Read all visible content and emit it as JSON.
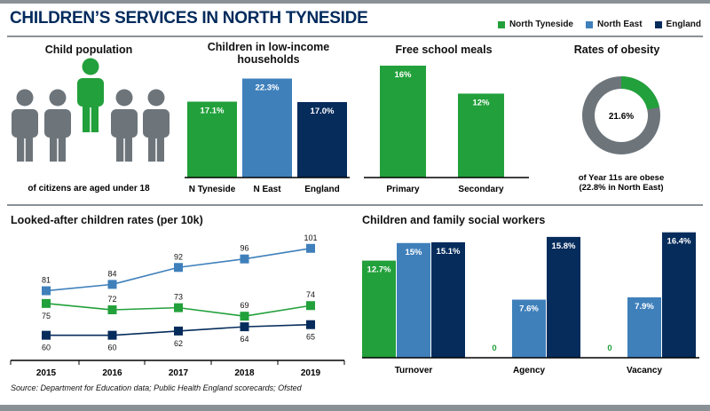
{
  "header": {
    "title": "CHILDREN’S SERVICES IN NORTH TYNESIDE",
    "legend": [
      {
        "name": "North Tyneside",
        "color": "#22a03b"
      },
      {
        "name": "North East",
        "color": "#3f80bb"
      },
      {
        "name": "England",
        "color": "#062c5c"
      }
    ]
  },
  "colors": {
    "nt": "#22a03b",
    "ne": "#3f80bb",
    "en": "#062c5c",
    "grey": "#6d757b"
  },
  "panels": {
    "population": {
      "title": "Child population",
      "caption": "of citizens are aged under 18",
      "highlighted_figures": 1,
      "total_figures": 5
    },
    "low_income": {
      "title": "Children in low-income households"
    },
    "fsm": {
      "title": "Free school meals"
    },
    "obesity": {
      "title": "Rates of obesity",
      "caption": "of Year 11s are obese (22.8% in North East)"
    },
    "lac": {
      "title": "Looked-after children rates (per 10k)"
    },
    "social": {
      "title": "Children and family social workers"
    }
  },
  "chart_data": [
    {
      "id": "low_income",
      "type": "bar",
      "title": "Children in low-income households",
      "categories": [
        "N Tyneside",
        "N East",
        "England"
      ],
      "values": [
        17.1,
        22.3,
        17.0
      ],
      "labels": [
        "17.1%",
        "22.3%",
        "17.0%"
      ],
      "ylim": [
        0,
        23
      ]
    },
    {
      "id": "fsm",
      "type": "bar",
      "title": "Free school meals",
      "categories": [
        "Primary",
        "Secondary"
      ],
      "values": [
        16,
        12
      ],
      "labels": [
        "16%",
        "12%"
      ],
      "ylim": [
        0,
        16.5
      ]
    },
    {
      "id": "obesity",
      "type": "pie",
      "title": "Rates of obesity",
      "values": [
        21.6,
        78.4
      ],
      "center_label": "21.6%"
    },
    {
      "id": "lac",
      "type": "line",
      "title": "Looked-after children rates (per 10k)",
      "x": [
        "2015",
        "2016",
        "2017",
        "2018",
        "2019"
      ],
      "series": [
        {
          "name": "North East",
          "values": [
            81,
            84,
            92,
            96,
            101
          ]
        },
        {
          "name": "North Tyneside",
          "values": [
            75,
            72,
            73,
            69,
            74
          ]
        },
        {
          "name": "England",
          "values": [
            60,
            60,
            62,
            64,
            65
          ]
        }
      ],
      "ylim": [
        54,
        103
      ]
    },
    {
      "id": "social",
      "type": "bar",
      "title": "Children and family social workers",
      "categories": [
        "Turnover",
        "Agency",
        "Vacancy"
      ],
      "series": [
        {
          "name": "North Tyneside",
          "values": [
            12.7,
            0,
            0
          ],
          "labels": [
            "12.7%",
            "0",
            "0"
          ]
        },
        {
          "name": "North East",
          "values": [
            15,
            7.6,
            7.9
          ],
          "labels": [
            "15%",
            "7.6%",
            "7.9%"
          ]
        },
        {
          "name": "England",
          "values": [
            15.1,
            15.8,
            16.4
          ],
          "labels": [
            "15.1%",
            "15.8%",
            "16.4%"
          ]
        }
      ],
      "ylim": [
        0,
        16.6
      ]
    }
  ],
  "footer": {
    "source": "Source: Department for Education data; Public Health England scorecards; Ofsted"
  }
}
